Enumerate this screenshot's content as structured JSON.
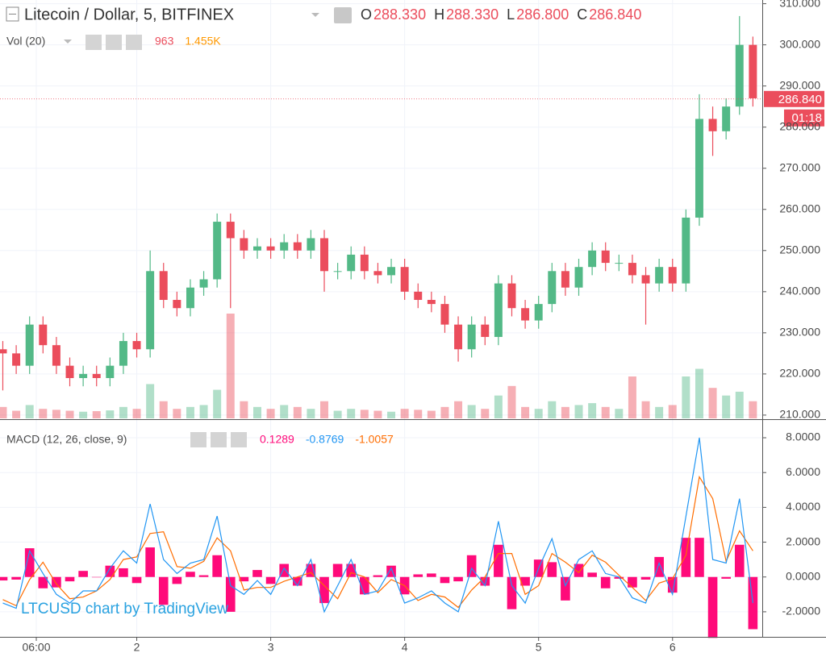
{
  "chart_data": [
    {
      "type": "candlestick",
      "title": "Litecoin / Dollar, 5, BITFINEX",
      "legend_values": [
        {
          "name": "O",
          "text": "288.330"
        },
        {
          "name": "H",
          "text": "288.330"
        },
        {
          "name": "L",
          "text": "286.800"
        },
        {
          "name": "C",
          "text": "286.840"
        }
      ],
      "x": [
        1.0,
        1.1,
        1.2,
        1.3,
        1.4,
        1.5,
        1.6,
        1.7,
        1.8,
        1.9,
        2.0,
        2.1,
        2.2,
        2.3,
        2.4,
        2.5,
        2.6,
        2.7,
        2.8,
        2.9,
        3.0,
        3.1,
        3.2,
        3.3,
        3.4,
        3.5,
        3.6,
        3.7,
        3.8,
        3.9,
        4.0,
        4.1,
        4.2,
        4.3,
        4.4,
        4.5,
        4.6,
        4.7,
        4.8,
        4.9,
        5.0,
        5.1,
        5.2,
        5.3,
        5.4,
        5.5,
        5.6,
        5.7,
        5.8,
        5.9,
        6.0,
        6.1,
        6.2,
        6.3,
        6.4,
        6.5,
        6.6
      ],
      "open": [
        226,
        225,
        222,
        232,
        227,
        222,
        219,
        220,
        219,
        222,
        228,
        226,
        245,
        238,
        236,
        241,
        243,
        257,
        253,
        250,
        251,
        250,
        252,
        250,
        253,
        245,
        245,
        249,
        245,
        244,
        246,
        240,
        238,
        237,
        232,
        226,
        232,
        229,
        242,
        236,
        233,
        237,
        245,
        241,
        246,
        250,
        247,
        247,
        244,
        242,
        246,
        242,
        258,
        282,
        279,
        285,
        300
      ],
      "high": [
        228,
        227,
        234,
        234,
        229,
        224,
        222,
        222,
        224,
        230,
        230,
        250,
        247,
        240,
        243,
        245,
        259,
        259,
        255,
        253,
        253,
        254,
        254,
        255,
        255,
        247,
        251,
        251,
        247,
        248,
        248,
        242,
        240,
        239,
        234,
        234,
        234,
        244,
        244,
        238,
        239,
        247,
        247,
        248,
        252,
        252,
        249,
        249,
        246,
        248,
        248,
        260,
        288,
        285,
        287,
        307,
        302
      ],
      "low": [
        216,
        220,
        220,
        225,
        220,
        217,
        217,
        217,
        217,
        220,
        224,
        224,
        236,
        234,
        234,
        239,
        241,
        236,
        248,
        248,
        248,
        248,
        248,
        248,
        240,
        243,
        243,
        243,
        242,
        242,
        238,
        236,
        235,
        230,
        223,
        224,
        227,
        227,
        234,
        231,
        231,
        235,
        239,
        239,
        244,
        245,
        245,
        242,
        232,
        240,
        240,
        240,
        256,
        273,
        277,
        283,
        285
      ],
      "close": [
        225,
        222,
        232,
        227,
        222,
        219,
        220,
        219,
        222,
        228,
        226,
        245,
        238,
        236,
        241,
        243,
        257,
        253,
        250,
        251,
        250,
        252,
        250,
        253,
        245,
        245,
        249,
        245,
        244,
        246,
        240,
        238,
        237,
        232,
        226,
        232,
        229,
        242,
        236,
        233,
        237,
        245,
        241,
        246,
        250,
        247,
        247,
        244,
        242,
        246,
        242,
        258,
        282,
        279,
        285,
        300,
        287
      ],
      "up_color": "#53b987",
      "down_color": "#eb4d5c",
      "volume": {
        "name": "Vol (20)",
        "readout": [
          {
            "text": "963",
            "color": "#eb4d5c"
          },
          {
            "text": "1.455K",
            "color": "#ff9800"
          }
        ],
        "values": [
          600,
          400,
          700,
          500,
          450,
          400,
          350,
          380,
          420,
          600,
          500,
          1800,
          900,
          500,
          600,
          700,
          1500,
          5500,
          900,
          600,
          500,
          700,
          600,
          500,
          900,
          400,
          500,
          450,
          400,
          350,
          500,
          450,
          400,
          600,
          900,
          700,
          500,
          1200,
          1700,
          600,
          500,
          900,
          600,
          700,
          800,
          600,
          500,
          2200,
          900,
          600,
          700,
          2200,
          2600,
          1600,
          1200,
          1400,
          900
        ]
      },
      "xlim": [
        0.979,
        6.67
      ],
      "xticks": [
        {
          "value": 1.25,
          "label": "06:00"
        },
        2,
        3,
        4,
        5,
        6
      ],
      "ylim": [
        209.2,
        310.9
      ],
      "yticks": [
        {
          "value": 210,
          "label": "210.000"
        },
        {
          "value": 220,
          "label": "220.000"
        },
        {
          "value": 230,
          "label": "230.000"
        },
        {
          "value": 240,
          "label": "240.000"
        },
        {
          "value": 250,
          "label": "250.000"
        },
        {
          "value": 260,
          "label": "260.000"
        },
        {
          "value": 270,
          "label": "270.000"
        },
        {
          "value": 280,
          "label": "280.000"
        },
        {
          "value": 290,
          "label": "290.000"
        },
        {
          "value": 300,
          "label": "300.000"
        },
        {
          "value": 310,
          "label": "310.000"
        }
      ],
      "last_price": {
        "value": 286.84,
        "label": "286.840"
      },
      "countdown": "01:18",
      "grid": true,
      "watermark": "LTCUSD chart by TradingView"
    },
    {
      "type": "macd",
      "title": "MACD (12, 26, close, 9)",
      "x": [
        1.0,
        1.1,
        1.2,
        1.3,
        1.4,
        1.5,
        1.6,
        1.7,
        1.8,
        1.9,
        2.0,
        2.1,
        2.2,
        2.3,
        2.4,
        2.5,
        2.6,
        2.7,
        2.8,
        2.9,
        3.0,
        3.1,
        3.2,
        3.3,
        3.4,
        3.5,
        3.6,
        3.7,
        3.8,
        3.9,
        4.0,
        4.1,
        4.2,
        4.3,
        4.4,
        4.5,
        4.6,
        4.7,
        4.8,
        4.9,
        5.0,
        5.1,
        5.2,
        5.3,
        5.4,
        5.5,
        5.6,
        5.7,
        5.8,
        5.9,
        6.0,
        6.1,
        6.2,
        6.3,
        6.4,
        6.5,
        6.6
      ],
      "histogram": {
        "color": "#ff0a7a",
        "readout": "0.1289",
        "values": [
          -0.2,
          -0.15,
          1.65,
          -0.65,
          -0.6,
          -0.25,
          0.35,
          0.0,
          0.65,
          0.5,
          -0.35,
          1.7,
          -1.6,
          -0.4,
          0.3,
          0.1,
          1.25,
          -2.0,
          -0.25,
          0.4,
          -0.4,
          0.75,
          -0.5,
          0.75,
          -1.5,
          0.75,
          0.75,
          -1.0,
          0.1,
          0.65,
          -1.0,
          0.15,
          0.2,
          -0.35,
          -0.25,
          1.25,
          -0.5,
          1.85,
          -1.85,
          -0.5,
          1.0,
          0.85,
          -1.35,
          0.75,
          0.25,
          -0.65,
          -0.1,
          -0.6,
          -0.15,
          1.15,
          -0.9,
          2.25,
          2.25,
          -3.5,
          -0.1,
          1.85,
          -3.0
        ]
      },
      "macd": {
        "color": "#2196f3",
        "readout": "-0.8769",
        "values": [
          -1.5,
          -1.8,
          1.5,
          0.2,
          -1.0,
          -1.5,
          -0.8,
          -0.8,
          0.5,
          1.5,
          0.8,
          4.2,
          1.0,
          0.2,
          0.8,
          1.0,
          3.5,
          -0.5,
          -1.0,
          -0.2,
          -1.0,
          0.5,
          -0.5,
          1.0,
          -2.0,
          -0.5,
          1.0,
          -1.0,
          -0.8,
          0.5,
          -1.5,
          -1.2,
          -0.8,
          -1.5,
          -2.0,
          0.5,
          -0.5,
          3.2,
          -0.5,
          -1.5,
          0.5,
          2.2,
          -0.5,
          1.0,
          1.5,
          0.2,
          0.0,
          -1.2,
          -1.5,
          0.8,
          -1.0,
          3.5,
          8.0,
          1.0,
          0.8,
          4.5,
          -1.5
        ]
      },
      "signal": {
        "color": "#ff6d00",
        "readout": "-1.0057",
        "values": [
          -1.3,
          -1.65,
          -0.15,
          0.85,
          -0.4,
          -1.25,
          -1.15,
          -0.8,
          -0.15,
          1.0,
          1.15,
          2.5,
          2.6,
          0.6,
          0.5,
          0.9,
          2.25,
          1.5,
          -0.75,
          -0.6,
          -0.6,
          -0.25,
          0.0,
          0.25,
          -0.5,
          -1.25,
          0.25,
          0.0,
          -0.9,
          -0.15,
          -0.5,
          -1.35,
          -1.0,
          -1.15,
          -1.75,
          -0.75,
          0.0,
          1.35,
          1.35,
          -1.0,
          -0.5,
          1.35,
          0.85,
          0.25,
          1.25,
          0.85,
          0.1,
          -0.6,
          -1.35,
          -0.35,
          -0.1,
          1.25,
          5.75,
          4.5,
          0.9,
          2.65,
          1.5
        ]
      },
      "xlim": [
        0.979,
        6.67
      ],
      "ylim": [
        -3.44,
        9.02
      ],
      "yticks": [
        {
          "value": -2,
          "label": "-2.0000"
        },
        {
          "value": 0,
          "label": "0.0000"
        },
        {
          "value": 2,
          "label": "2.0000"
        },
        {
          "value": 4,
          "label": "4.0000"
        },
        {
          "value": 6,
          "label": "6.0000"
        },
        {
          "value": 8,
          "label": "8.0000"
        }
      ],
      "grid": true
    }
  ]
}
